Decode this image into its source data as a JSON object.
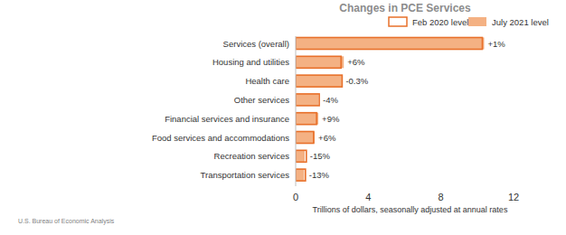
{
  "chart_data": {
    "type": "bar",
    "orientation": "horizontal",
    "title": "Changes in PCE Services",
    "categories": [
      "Services (overall)",
      "Housing and utilities",
      "Health care",
      "Other services",
      "Financial services and insurance",
      "Food services and accommodations",
      "Recreation services",
      "Transportation services"
    ],
    "series": [
      {
        "name": "Feb 2020 level",
        "type": "outline",
        "color": "#e8702a",
        "values": [
          10.28,
          2.5,
          2.56,
          1.3,
          1.15,
          0.99,
          0.59,
          0.54
        ]
      },
      {
        "name": "July 2021 level",
        "type": "bar",
        "color": "#f4b183",
        "values": [
          10.38,
          2.65,
          2.55,
          1.25,
          1.25,
          1.05,
          0.5,
          0.47
        ]
      }
    ],
    "annotations": [
      "+1%",
      "+6%",
      "-0.3%",
      "-4%",
      "+9%",
      "+6%",
      "-15%",
      "-13%"
    ],
    "xlim": [
      0,
      12
    ],
    "xticks": [
      0,
      4,
      8,
      12
    ],
    "xlabel": "Trillions of dollars, seasonally adjusted at annual rates",
    "legend": "top",
    "source": "U.S. Bureau of Economic Analysis"
  }
}
